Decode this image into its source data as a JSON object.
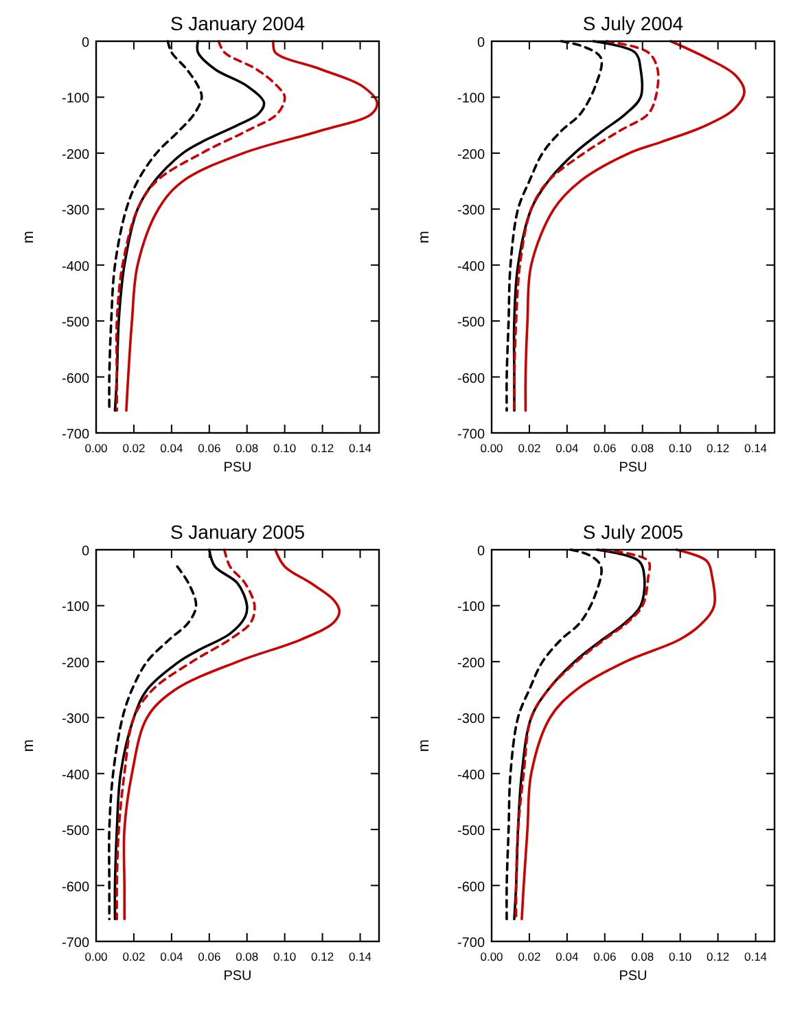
{
  "chart_data": [
    {
      "type": "line",
      "title": "S January 2004",
      "xlabel": "PSU",
      "ylabel": "m",
      "xlim": [
        0,
        0.15
      ],
      "xticks": [
        {
          "value": 0,
          "label": "0.00"
        },
        {
          "value": 0.02,
          "label": "0.02"
        },
        {
          "value": 0.04,
          "label": "0.04"
        },
        {
          "value": 0.06,
          "label": "0.06"
        },
        {
          "value": 0.08,
          "label": "0.08"
        },
        {
          "value": 0.1,
          "label": "0.10"
        },
        {
          "value": 0.12,
          "label": "0.12"
        },
        {
          "value": 0.14,
          "label": "0.14"
        }
      ],
      "ylim": [
        -700,
        0
      ],
      "yticks": [
        0,
        -100,
        -200,
        -300,
        -400,
        -500,
        -600,
        -700
      ],
      "grid": false,
      "series": [
        {
          "color": "#000000",
          "line_style": "solid",
          "x": [
            0.054,
            0.054,
            0.063,
            0.08,
            0.089,
            0.086,
            0.075,
            0.056,
            0.046,
            0.031,
            0.022,
            0.015,
            0.012,
            0.011,
            0.01
          ],
          "values": [
            0,
            -20,
            -50,
            -80,
            -110,
            -130,
            -150,
            -180,
            -200,
            -250,
            -300,
            -400,
            -500,
            -600,
            -660
          ]
        },
        {
          "color": "#000000",
          "line_style": "dashed",
          "x": [
            0.038,
            0.04,
            0.048,
            0.054,
            0.056,
            0.052,
            0.044,
            0.032,
            0.022,
            0.016,
            0.01,
            0.008,
            0.007,
            0.007
          ],
          "values": [
            0,
            -20,
            -50,
            -80,
            -100,
            -130,
            -160,
            -200,
            -250,
            -300,
            -400,
            -500,
            -600,
            -660
          ]
        },
        {
          "color": "#cc0000",
          "line_style": "solid",
          "x": [
            0.094,
            0.095,
            0.119,
            0.141,
            0.149,
            0.146,
            0.119,
            0.078,
            0.046,
            0.033,
            0.022,
            0.019,
            0.017,
            0.016
          ],
          "values": [
            0,
            -20,
            -50,
            -80,
            -110,
            -130,
            -160,
            -200,
            -250,
            -300,
            -400,
            -500,
            -600,
            -660
          ]
        },
        {
          "color": "#cc0000",
          "line_style": "dashed",
          "x": [
            0.065,
            0.068,
            0.085,
            0.096,
            0.1,
            0.096,
            0.08,
            0.056,
            0.032,
            0.022,
            0.014,
            0.011,
            0.011,
            0.011
          ],
          "values": [
            0,
            -20,
            -50,
            -80,
            -100,
            -130,
            -160,
            -200,
            -250,
            -300,
            -400,
            -500,
            -600,
            -660
          ]
        }
      ]
    },
    {
      "type": "line",
      "title": "S July 2004",
      "xlabel": "PSU",
      "ylabel": "m",
      "xlim": [
        0,
        0.15
      ],
      "xticks": [
        {
          "value": 0,
          "label": "0.00"
        },
        {
          "value": 0.02,
          "label": "0.02"
        },
        {
          "value": 0.04,
          "label": "0.04"
        },
        {
          "value": 0.06,
          "label": "0.06"
        },
        {
          "value": 0.08,
          "label": "0.08"
        },
        {
          "value": 0.1,
          "label": "0.10"
        },
        {
          "value": 0.12,
          "label": "0.12"
        },
        {
          "value": 0.14,
          "label": "0.14"
        }
      ],
      "ylim": [
        -700,
        0
      ],
      "yticks": [
        0,
        -100,
        -200,
        -300,
        -400,
        -500,
        -600,
        -700
      ],
      "grid": false,
      "series": [
        {
          "color": "#000000",
          "line_style": "solid",
          "x": [
            0.054,
            0.076,
            0.079,
            0.079,
            0.071,
            0.059,
            0.044,
            0.03,
            0.021,
            0.014,
            0.012,
            0.012,
            0.012
          ],
          "values": [
            0,
            -20,
            -50,
            -100,
            -130,
            -160,
            -200,
            -250,
            -300,
            -400,
            -500,
            -600,
            -660
          ]
        },
        {
          "color": "#000000",
          "line_style": "dashed",
          "x": [
            0.037,
            0.049,
            0.058,
            0.055,
            0.047,
            0.037,
            0.027,
            0.02,
            0.014,
            0.01,
            0.009,
            0.008,
            0.008
          ],
          "values": [
            0,
            -10,
            -30,
            -80,
            -130,
            -160,
            -200,
            -250,
            -300,
            -400,
            -500,
            -600,
            -660
          ]
        },
        {
          "color": "#cc0000",
          "line_style": "solid",
          "x": [
            0.095,
            0.114,
            0.129,
            0.134,
            0.129,
            0.114,
            0.09,
            0.073,
            0.047,
            0.033,
            0.021,
            0.019,
            0.018,
            0.018
          ],
          "values": [
            0,
            -30,
            -60,
            -90,
            -120,
            -150,
            -180,
            -200,
            -250,
            -300,
            -400,
            -500,
            -600,
            -660
          ]
        },
        {
          "color": "#cc0000",
          "line_style": "dashed",
          "x": [
            0.061,
            0.083,
            0.088,
            0.087,
            0.083,
            0.068,
            0.049,
            0.03,
            0.021,
            0.015,
            0.013,
            0.012,
            0.012
          ],
          "values": [
            0,
            -20,
            -50,
            -100,
            -130,
            -160,
            -200,
            -250,
            -300,
            -400,
            -500,
            -600,
            -660
          ]
        }
      ]
    },
    {
      "type": "line",
      "title": "S January 2005",
      "xlabel": "PSU",
      "ylabel": "m",
      "xlim": [
        0,
        0.15
      ],
      "xticks": [
        {
          "value": 0,
          "label": "0.00"
        },
        {
          "value": 0.02,
          "label": "0.02"
        },
        {
          "value": 0.04,
          "label": "0.04"
        },
        {
          "value": 0.06,
          "label": "0.06"
        },
        {
          "value": 0.08,
          "label": "0.08"
        },
        {
          "value": 0.1,
          "label": "0.10"
        },
        {
          "value": 0.12,
          "label": "0.12"
        },
        {
          "value": 0.14,
          "label": "0.14"
        }
      ],
      "ylim": [
        -700,
        0
      ],
      "yticks": [
        0,
        -100,
        -200,
        -300,
        -400,
        -500,
        -600,
        -700
      ],
      "grid": false,
      "series": [
        {
          "color": "#000000",
          "line_style": "solid",
          "x": [
            0.06,
            0.063,
            0.075,
            0.08,
            0.079,
            0.071,
            0.054,
            0.044,
            0.027,
            0.02,
            0.013,
            0.011,
            0.01,
            0.01
          ],
          "values": [
            0,
            -30,
            -60,
            -100,
            -120,
            -150,
            -180,
            -200,
            -250,
            -300,
            -400,
            -500,
            -600,
            -660
          ]
        },
        {
          "color": "#000000",
          "line_style": "dashed",
          "x": [
            0.043,
            0.049,
            0.053,
            0.049,
            0.039,
            0.027,
            0.019,
            0.014,
            0.009,
            0.007,
            0.007,
            0.007
          ],
          "values": [
            -30,
            -60,
            -100,
            -130,
            -160,
            -200,
            -250,
            -300,
            -400,
            -500,
            -600,
            -660
          ]
        },
        {
          "color": "#cc0000",
          "line_style": "solid",
          "x": [
            0.095,
            0.1,
            0.114,
            0.126,
            0.129,
            0.126,
            0.109,
            0.075,
            0.042,
            0.027,
            0.019,
            0.015,
            0.015,
            0.015
          ],
          "values": [
            0,
            -30,
            -60,
            -90,
            -110,
            -130,
            -160,
            -200,
            -250,
            -300,
            -400,
            -500,
            -600,
            -660
          ]
        },
        {
          "color": "#cc0000",
          "line_style": "dashed",
          "x": [
            0.068,
            0.071,
            0.079,
            0.084,
            0.082,
            0.071,
            0.051,
            0.03,
            0.02,
            0.015,
            0.012,
            0.011,
            0.011
          ],
          "values": [
            0,
            -30,
            -60,
            -100,
            -130,
            -160,
            -200,
            -250,
            -300,
            -400,
            -500,
            -600,
            -660
          ]
        }
      ]
    },
    {
      "type": "line",
      "title": "S July 2005",
      "xlabel": "PSU",
      "ylabel": "m",
      "xlim": [
        0,
        0.15
      ],
      "xticks": [
        {
          "value": 0,
          "label": "0.00"
        },
        {
          "value": 0.02,
          "label": "0.02"
        },
        {
          "value": 0.04,
          "label": "0.04"
        },
        {
          "value": 0.06,
          "label": "0.06"
        },
        {
          "value": 0.08,
          "label": "0.08"
        },
        {
          "value": 0.1,
          "label": "0.10"
        },
        {
          "value": 0.12,
          "label": "0.12"
        },
        {
          "value": 0.14,
          "label": "0.14"
        }
      ],
      "ylim": [
        -700,
        0
      ],
      "yticks": [
        0,
        -100,
        -200,
        -300,
        -400,
        -500,
        -600,
        -700
      ],
      "grid": false,
      "series": [
        {
          "color": "#000000",
          "line_style": "solid",
          "x": [
            0.056,
            0.078,
            0.081,
            0.079,
            0.071,
            0.059,
            0.044,
            0.03,
            0.021,
            0.016,
            0.014,
            0.013,
            0.012
          ],
          "values": [
            0,
            -20,
            -50,
            -100,
            -130,
            -160,
            -200,
            -250,
            -300,
            -400,
            -500,
            -600,
            -660
          ]
        },
        {
          "color": "#000000",
          "line_style": "dashed",
          "x": [
            0.042,
            0.052,
            0.058,
            0.055,
            0.047,
            0.037,
            0.027,
            0.02,
            0.014,
            0.01,
            0.009,
            0.008,
            0.008
          ],
          "values": [
            0,
            -10,
            -30,
            -80,
            -130,
            -160,
            -200,
            -250,
            -300,
            -400,
            -500,
            -600,
            -660
          ]
        },
        {
          "color": "#cc0000",
          "line_style": "solid",
          "x": [
            0.098,
            0.114,
            0.117,
            0.118,
            0.112,
            0.1,
            0.071,
            0.045,
            0.031,
            0.021,
            0.019,
            0.017,
            0.016
          ],
          "values": [
            0,
            -20,
            -50,
            -100,
            -130,
            -160,
            -200,
            -250,
            -300,
            -400,
            -500,
            -600,
            -660
          ]
        },
        {
          "color": "#cc0000",
          "line_style": "dashed",
          "x": [
            0.059,
            0.083,
            0.083,
            0.08,
            0.072,
            0.06,
            0.045,
            0.03,
            0.021,
            0.017,
            0.014,
            0.013,
            0.013
          ],
          "values": [
            0,
            -20,
            -50,
            -100,
            -130,
            -160,
            -200,
            -250,
            -300,
            -400,
            -500,
            -600,
            -660
          ]
        }
      ]
    }
  ]
}
